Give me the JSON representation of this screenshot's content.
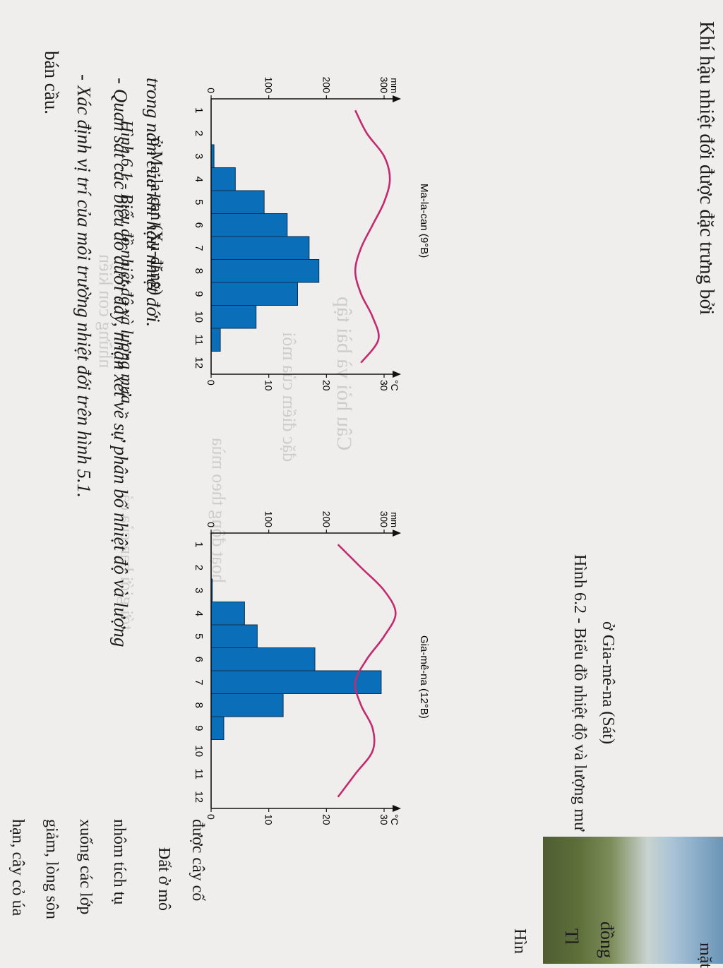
{
  "page": {
    "top_lines": [
      "bán cầu.",
      "- Xác định vị trí của môi trường nhiệt đới trên hình 5.1.",
      "- Quan sát các biểu đồ dưới đây, nhận xét về sự phân bố nhiệt độ và lượng",
      "trong năm của khí hậu nhiệt đới."
    ],
    "right_column": [
      "hạn, cây cỏ úa",
      "giảm, lòng sôn",
      "xuống các lớp",
      "nhôm tích tụ",
      "Đất ở mô",
      "được cây cố"
    ],
    "bottom_left_text": "Khí hậu nhiệt đới được đặc trưng bởi",
    "right_fragments": [
      "Hìn",
      "Tl",
      "đồng",
      "mặt"
    ]
  },
  "figure1": {
    "station": "Ma-la-can (9°B)",
    "caption_line1": "Hình 6.1 - Biểu đồ nhiệt độ và lượng mưa",
    "caption_line2": "ở Ma-la-can (Xu-đăng)",
    "rain_unit": "mm",
    "temp_unit": "°C",
    "rain_ticks": [
      "0",
      "100",
      "200",
      "300"
    ],
    "temp_ticks": [
      "0",
      "10",
      "20",
      "30"
    ],
    "months": [
      "1",
      "2",
      "3",
      "4",
      "5",
      "6",
      "7",
      "8",
      "9",
      "10",
      "11",
      "12"
    ]
  },
  "figure2": {
    "station": "Gia-mê-na (12°B)",
    "caption_line1": "Hình 6.2 - Biểu đồ nhiệt độ và lượng mư",
    "caption_line2": "ở Gia-mê-na (Sát)",
    "rain_unit": "mm",
    "temp_unit": "°C",
    "rain_ticks": [
      "0",
      "100",
      "200",
      "300"
    ],
    "temp_ticks": [
      "0",
      "10",
      "20",
      "30"
    ],
    "months": [
      "1",
      "2",
      "3",
      "4",
      "5",
      "6",
      "7",
      "8",
      "9",
      "10",
      "11",
      "12"
    ]
  },
  "chart_data": [
    {
      "type": "bar",
      "title": "Ma-la-can (9°B)",
      "categories": [
        "1",
        "2",
        "3",
        "4",
        "5",
        "6",
        "7",
        "8",
        "9",
        "10",
        "11",
        "12"
      ],
      "series": [
        {
          "values": [
            0,
            0,
            5,
            42,
            92,
            132,
            170,
            187,
            150,
            78,
            16,
            0
          ],
          "color": "#0a6fb8"
        },
        {
          "values": [
            25,
            27,
            30,
            31,
            30,
            28,
            26,
            25,
            26,
            28,
            29,
            26
          ],
          "color": "#c22b6e"
        }
      ],
      "ylim": [
        0,
        300
      ],
      "ylim_right": [
        0,
        30
      ],
      "ylabel": "mm",
      "ylabel_right": "°C"
    },
    {
      "type": "bar",
      "title": "Gia-mê-na (12°B)",
      "categories": [
        "1",
        "2",
        "3",
        "4",
        "5",
        "6",
        "7",
        "8",
        "9",
        "10",
        "11",
        "12"
      ],
      "series": [
        {
          "values": [
            0,
            0,
            2,
            58,
            80,
            180,
            295,
            125,
            22,
            0,
            0,
            0
          ],
          "color": "#0a6fb8"
        },
        {
          "values": [
            22,
            26,
            30,
            32,
            30,
            27,
            25,
            26,
            28,
            28,
            25,
            22
          ],
          "color": "#c22b6e"
        }
      ],
      "ylim": [
        0,
        300
      ],
      "ylim_right": [
        0,
        30
      ],
      "ylabel": "mm",
      "ylabel_right": "°C"
    }
  ]
}
